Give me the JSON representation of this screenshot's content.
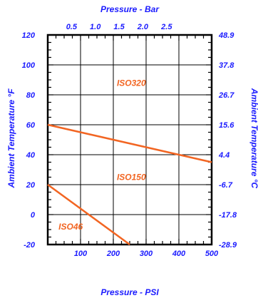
{
  "chart_data": {
    "type": "line",
    "title": "",
    "x_top_label": "Pressure - Bar",
    "x_bottom_label": "Pressure - PSI",
    "y_left_label": "Ambient Temperature °F",
    "y_right_label": "Ambient Temperature °C",
    "xlim": [
      0,
      500
    ],
    "ylim": [
      -20,
      120
    ],
    "x_bottom_ticks": [
      100,
      200,
      300,
      400,
      500
    ],
    "x_top_ticks": [
      {
        "label": "0.5",
        "psi": 72.5
      },
      {
        "label": "1.0",
        "psi": 145
      },
      {
        "label": "1.5",
        "psi": 217.5
      },
      {
        "label": "2.0",
        "psi": 290
      },
      {
        "label": "2.5",
        "psi": 362.6
      }
    ],
    "y_left_ticks": [
      -20,
      0,
      20,
      40,
      60,
      80,
      100,
      120
    ],
    "y_right_ticks": [
      {
        "label": "-28.9",
        "f": -20
      },
      {
        "label": "-17.8",
        "f": 0
      },
      {
        "label": "-6.7",
        "f": 20
      },
      {
        "label": "4.4",
        "f": 40
      },
      {
        "label": "15.6",
        "f": 60
      },
      {
        "label": "26.7",
        "f": 80
      },
      {
        "label": "37.8",
        "f": 100
      },
      {
        "label": "48.9",
        "f": 120
      }
    ],
    "grid": true,
    "series": [
      {
        "name": "ISO320",
        "x": [],
        "y": []
      },
      {
        "name": "ISO150",
        "x": [
          0,
          500
        ],
        "y": [
          60,
          35
        ]
      },
      {
        "name": "ISO46",
        "x": [
          0,
          250
        ],
        "y": [
          20,
          -20
        ]
      }
    ],
    "annotations": [
      {
        "text": "ISO320",
        "x": 255,
        "y": 86
      },
      {
        "text": "ISO150",
        "x": 255,
        "y": 23
      },
      {
        "text": "ISO46",
        "x": 70,
        "y": -10
      }
    ],
    "colors": {
      "axis_text": "#1a1aff",
      "line": "#f26522",
      "frame": "#000000"
    }
  }
}
